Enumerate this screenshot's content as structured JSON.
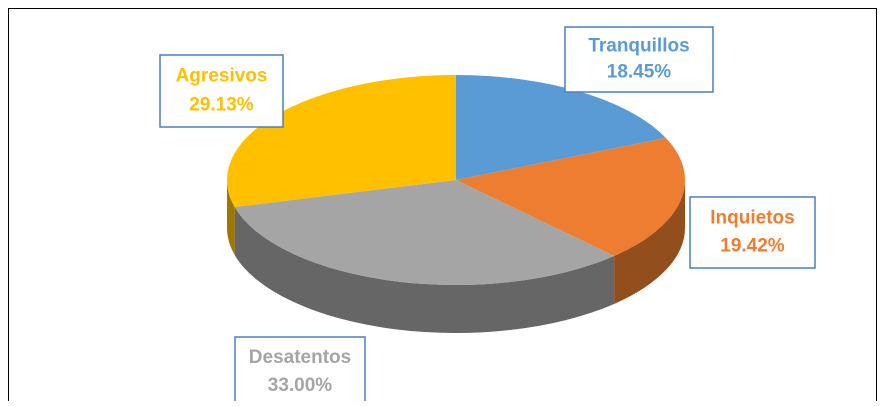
{
  "chart_data": {
    "type": "pie",
    "categories": [
      "Tranquillos",
      "Inquietos",
      "Desatentos",
      "Agresivos"
    ],
    "values": [
      18.45,
      19.42,
      33.0,
      29.13
    ],
    "value_labels": [
      "18.45%",
      "19.42%",
      "33.00%",
      "29.13%"
    ],
    "colors": [
      "#5b9bd5",
      "#ed7d31",
      "#a5a5a5",
      "#ffc000"
    ]
  }
}
